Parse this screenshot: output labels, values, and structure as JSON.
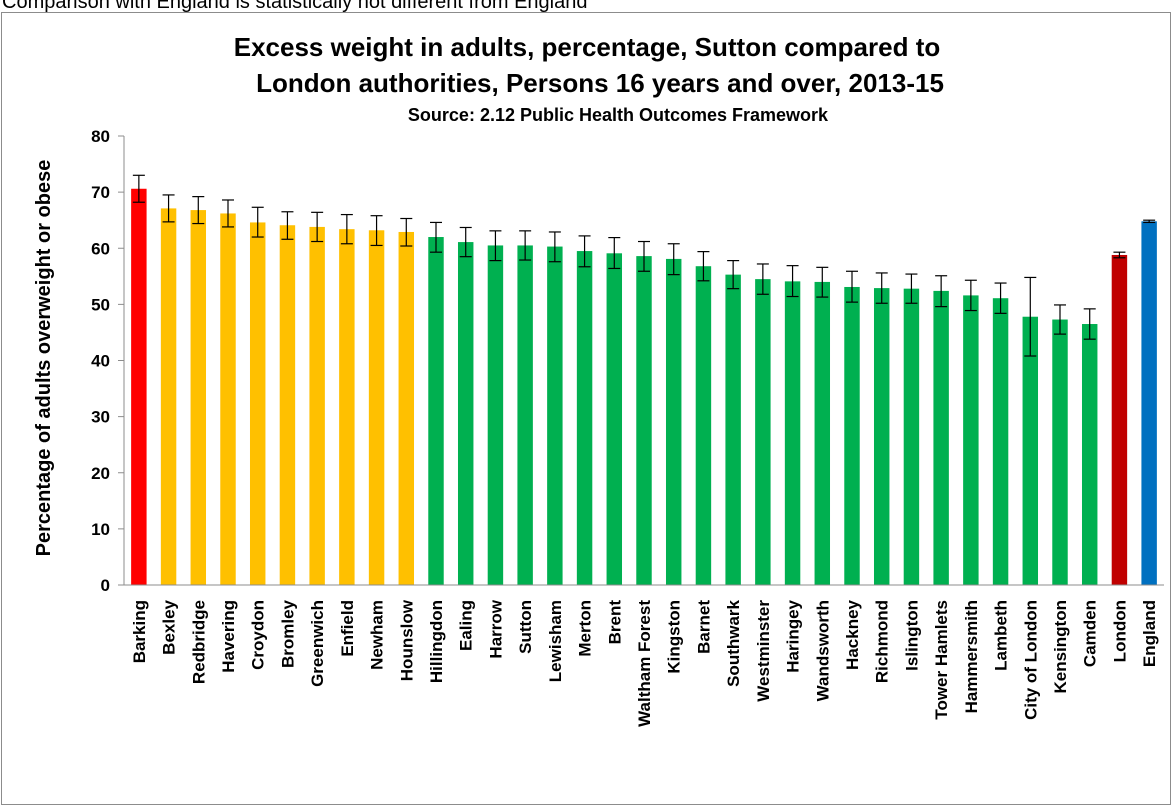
{
  "top_caption": "Comparison with England is statistically not different from England",
  "chart_data": {
    "type": "bar",
    "title_line1": "Excess weight in adults, percentage, Sutton compared to",
    "title_line2": "London authorities, Persons 16 years and over, 2013-15",
    "subtitle": "Source: 2.12 Public Health Outcomes Framework",
    "ylabel": "Percentage of adults overweight or obese",
    "xlabel": "",
    "ylim": [
      0,
      80
    ],
    "yticks": [
      0,
      10,
      20,
      30,
      40,
      50,
      60,
      70,
      80
    ],
    "grid": false,
    "colors": {
      "red": "#ff0000",
      "amber": "#ffc000",
      "green": "#00b050",
      "dark_red": "#c00000",
      "blue": "#0070c0"
    },
    "categories": [
      "Barking",
      "Bexley",
      "Redbridge",
      "Havering",
      "Croydon",
      "Bromley",
      "Greenwich",
      "Enfield",
      "Newham",
      "Hounslow",
      "Hillingdon",
      "Ealing",
      "Harrow",
      "Sutton",
      "Lewisham",
      "Merton",
      "Brent",
      "Waltham Forest",
      "Kingston",
      "Barnet",
      "Southwark",
      "Westminster",
      "Haringey",
      "Wandsworth",
      "Hackney",
      "Richmond",
      "Islington",
      "Tower Hamlets",
      "Hammersmith",
      "Lambeth",
      "City of London",
      "Kensington",
      "Camden",
      "London",
      "England"
    ],
    "values": [
      70.6,
      67.1,
      66.8,
      66.2,
      64.6,
      64.1,
      63.8,
      63.4,
      63.2,
      62.9,
      62.0,
      61.1,
      60.5,
      60.5,
      60.3,
      59.5,
      59.1,
      58.6,
      58.1,
      56.8,
      55.3,
      54.5,
      54.1,
      54.0,
      53.1,
      52.9,
      52.8,
      52.4,
      51.6,
      51.1,
      47.8,
      47.3,
      46.5,
      58.8,
      64.8
    ],
    "ci_lower": [
      68.2,
      64.7,
      64.4,
      63.8,
      62.0,
      61.6,
      61.2,
      60.8,
      60.5,
      60.4,
      59.3,
      58.5,
      57.8,
      57.9,
      57.6,
      56.7,
      56.4,
      55.9,
      55.3,
      54.2,
      52.8,
      51.8,
      51.4,
      51.3,
      50.4,
      50.2,
      50.2,
      49.6,
      48.9,
      48.4,
      40.8,
      44.7,
      43.8,
      58.3,
      64.6
    ],
    "ci_upper": [
      73.0,
      69.5,
      69.2,
      68.6,
      67.3,
      66.5,
      66.4,
      66.0,
      65.8,
      65.3,
      64.6,
      63.7,
      63.1,
      63.1,
      62.9,
      62.2,
      61.9,
      61.2,
      60.8,
      59.4,
      57.8,
      57.2,
      56.9,
      56.6,
      55.9,
      55.6,
      55.4,
      55.1,
      54.3,
      53.8,
      54.8,
      49.9,
      49.2,
      59.3,
      65.0
    ],
    "bar_colors": [
      "red",
      "amber",
      "amber",
      "amber",
      "amber",
      "amber",
      "amber",
      "amber",
      "amber",
      "amber",
      "green",
      "green",
      "green",
      "green",
      "green",
      "green",
      "green",
      "green",
      "green",
      "green",
      "green",
      "green",
      "green",
      "green",
      "green",
      "green",
      "green",
      "green",
      "green",
      "green",
      "green",
      "green",
      "green",
      "dark_red",
      "blue"
    ]
  }
}
